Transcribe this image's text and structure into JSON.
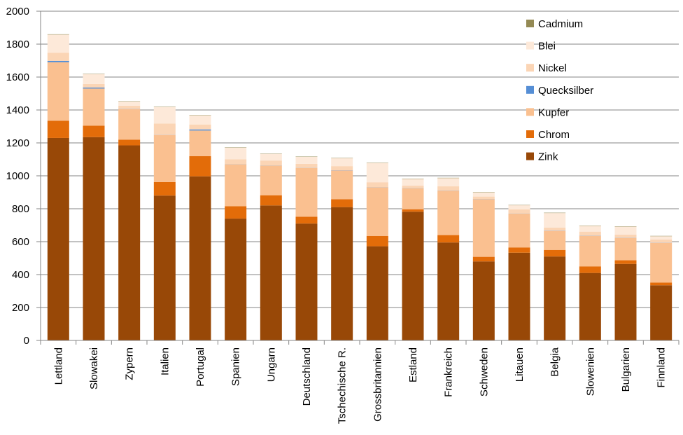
{
  "chart_data": {
    "type": "bar",
    "stacked": true,
    "ylim": [
      0,
      2000
    ],
    "yticks": [
      "0",
      "200",
      "400",
      "600",
      "800",
      "1000",
      "1200",
      "1400",
      "1600",
      "1800",
      "2000"
    ],
    "grid": true,
    "legend_position": "top-right",
    "categories": [
      "Lettland",
      "Slowakei",
      "Zypern",
      "Italien",
      "Portugal",
      "Spanien",
      "Ungarn",
      "Deutschland",
      "Tschechische R.",
      "Grossbritannien",
      "Estland",
      "Frankreich",
      "Schweden",
      "Litauen",
      "Belgia",
      "Slowenien",
      "Bulgarien",
      "Finnland"
    ],
    "series": [
      {
        "name": "Zink",
        "color": "#984807",
        "values": [
          1230,
          1235,
          1185,
          880,
          997,
          740,
          820,
          710,
          810,
          572,
          782,
          595,
          480,
          533,
          510,
          410,
          465,
          335
        ]
      },
      {
        "name": "Chrom",
        "color": "#E36C09",
        "values": [
          105,
          70,
          35,
          82,
          123,
          75,
          62,
          42,
          48,
          63,
          15,
          45,
          28,
          32,
          40,
          40,
          22,
          17
        ]
      },
      {
        "name": "Kupfer",
        "color": "#FAC090",
        "values": [
          355,
          225,
          185,
          285,
          155,
          255,
          180,
          295,
          175,
          295,
          128,
          270,
          350,
          205,
          115,
          185,
          135,
          240
        ]
      },
      {
        "name": "Quecksilber",
        "color": "#558ED5",
        "values": [
          8,
          6,
          1,
          1,
          7,
          1,
          1,
          1,
          1,
          1,
          1,
          1,
          1,
          1,
          1,
          1,
          1,
          1
        ]
      },
      {
        "name": "Nickel",
        "color": "#FBD5B5",
        "values": [
          50,
          22,
          20,
          70,
          30,
          30,
          30,
          25,
          25,
          30,
          15,
          25,
          15,
          25,
          20,
          25,
          20,
          20
        ]
      },
      {
        "name": "Blei",
        "color": "#FDE9D9",
        "values": [
          110,
          60,
          25,
          100,
          55,
          70,
          40,
          42,
          48,
          117,
          40,
          50,
          25,
          25,
          88,
          35,
          48,
          20
        ]
      },
      {
        "name": "Cadmium",
        "color": "#948A54",
        "values": [
          2,
          2,
          2,
          2,
          2,
          2,
          2,
          2,
          2,
          2,
          2,
          2,
          2,
          2,
          2,
          2,
          2,
          2
        ]
      }
    ]
  }
}
